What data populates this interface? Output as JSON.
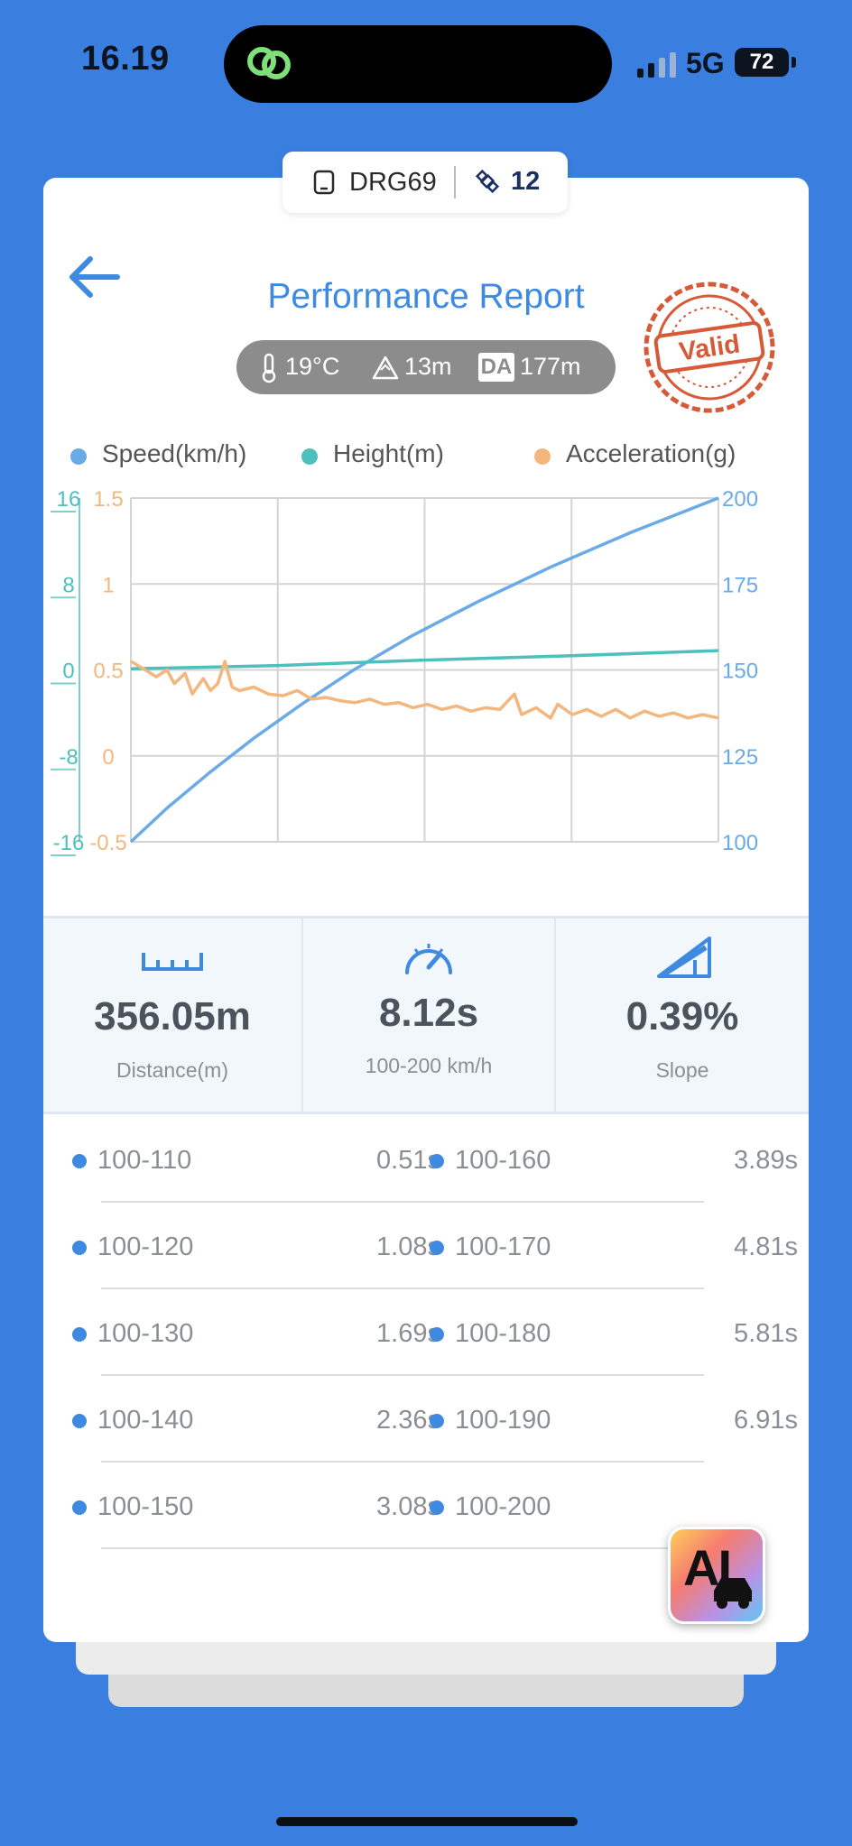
{
  "status_bar": {
    "time": "16.19",
    "network": "5G",
    "battery": "72"
  },
  "device": {
    "name": "DRG69",
    "satellites": "12"
  },
  "header": {
    "title": "Performance Report",
    "stamp": "Valid"
  },
  "conditions": {
    "temperature": "19°C",
    "altitude": "13m",
    "da_label": "DA",
    "density_altitude": "177m"
  },
  "legend": [
    {
      "label": "Speed(km/h)",
      "color": "#6aaae6"
    },
    {
      "label": "Height(m)",
      "color": "#4dc0bd"
    },
    {
      "label": "Acceleration(g)",
      "color": "#f3b77e"
    }
  ],
  "chart_data": {
    "type": "line",
    "x_range": [
      0,
      8.12
    ],
    "axes": {
      "height_ticks": [
        "16",
        "8",
        "0",
        "-8",
        "-16"
      ],
      "accel_ticks": [
        "1.5",
        "1",
        "0.5",
        "0",
        "-0.5"
      ],
      "speed_ticks": [
        "200",
        "175",
        "150",
        "125",
        "100"
      ],
      "height_range": [
        -16,
        16
      ],
      "accel_range": [
        -0.5,
        1.5
      ],
      "speed_range": [
        100,
        200
      ]
    },
    "grid": true,
    "series": [
      {
        "name": "Speed(km/h)",
        "axis": "speed",
        "color": "#6aaae6",
        "points": [
          [
            0,
            100
          ],
          [
            0.51,
            110
          ],
          [
            1.08,
            120
          ],
          [
            1.69,
            130
          ],
          [
            2.36,
            140
          ],
          [
            3.08,
            150
          ],
          [
            3.89,
            160
          ],
          [
            4.81,
            170
          ],
          [
            5.81,
            180
          ],
          [
            6.91,
            190
          ],
          [
            8.12,
            200
          ]
        ]
      },
      {
        "name": "Height(m)",
        "axis": "height",
        "color": "#4dc0bd",
        "points": [
          [
            0,
            0.1
          ],
          [
            2,
            0.4
          ],
          [
            4,
            0.9
          ],
          [
            6,
            1.3
          ],
          [
            8.12,
            1.8
          ]
        ]
      },
      {
        "name": "Acceleration(g)",
        "axis": "accel",
        "color": "#f3b77e",
        "points": [
          [
            0,
            0.55
          ],
          [
            0.2,
            0.5
          ],
          [
            0.35,
            0.46
          ],
          [
            0.5,
            0.5
          ],
          [
            0.6,
            0.42
          ],
          [
            0.75,
            0.48
          ],
          [
            0.85,
            0.36
          ],
          [
            1,
            0.45
          ],
          [
            1.1,
            0.38
          ],
          [
            1.2,
            0.42
          ],
          [
            1.3,
            0.55
          ],
          [
            1.4,
            0.4
          ],
          [
            1.5,
            0.38
          ],
          [
            1.7,
            0.4
          ],
          [
            1.9,
            0.36
          ],
          [
            2.1,
            0.35
          ],
          [
            2.3,
            0.38
          ],
          [
            2.5,
            0.33
          ],
          [
            2.7,
            0.34
          ],
          [
            2.9,
            0.32
          ],
          [
            3.1,
            0.31
          ],
          [
            3.3,
            0.33
          ],
          [
            3.5,
            0.3
          ],
          [
            3.7,
            0.31
          ],
          [
            3.9,
            0.28
          ],
          [
            4.1,
            0.3
          ],
          [
            4.3,
            0.27
          ],
          [
            4.5,
            0.29
          ],
          [
            4.7,
            0.26
          ],
          [
            4.9,
            0.28
          ],
          [
            5.1,
            0.27
          ],
          [
            5.3,
            0.36
          ],
          [
            5.4,
            0.24
          ],
          [
            5.6,
            0.28
          ],
          [
            5.8,
            0.22
          ],
          [
            5.9,
            0.3
          ],
          [
            6.1,
            0.24
          ],
          [
            6.3,
            0.27
          ],
          [
            6.5,
            0.23
          ],
          [
            6.7,
            0.27
          ],
          [
            6.9,
            0.22
          ],
          [
            7.1,
            0.26
          ],
          [
            7.3,
            0.23
          ],
          [
            7.5,
            0.25
          ],
          [
            7.7,
            0.22
          ],
          [
            7.9,
            0.24
          ],
          [
            8.12,
            0.22
          ]
        ]
      }
    ]
  },
  "stats": [
    {
      "icon": "ruler-icon",
      "value": "356.05m",
      "label": "Distance(m)"
    },
    {
      "icon": "speedometer-icon",
      "value": "8.12s",
      "label": "100-200 km/h"
    },
    {
      "icon": "slope-icon",
      "value": "0.39%",
      "label": "Slope"
    }
  ],
  "splits": {
    "left": [
      {
        "range": "100-110",
        "time": "0.51s"
      },
      {
        "range": "100-120",
        "time": "1.08s"
      },
      {
        "range": "100-130",
        "time": "1.69s"
      },
      {
        "range": "100-140",
        "time": "2.36s"
      },
      {
        "range": "100-150",
        "time": "3.08s"
      }
    ],
    "right": [
      {
        "range": "100-160",
        "time": "3.89s"
      },
      {
        "range": "100-170",
        "time": "4.81s"
      },
      {
        "range": "100-180",
        "time": "5.81s"
      },
      {
        "range": "100-190",
        "time": "6.91s"
      },
      {
        "range": "100-200",
        "time": ""
      }
    ]
  },
  "ai_button": {
    "label": "AI"
  }
}
